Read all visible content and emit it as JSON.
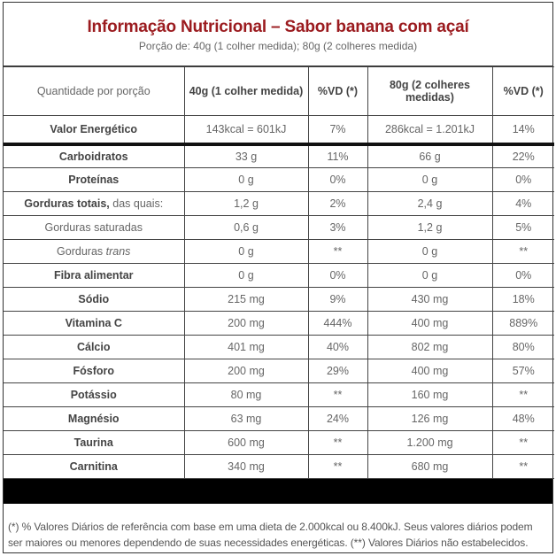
{
  "header": {
    "title": "Informação Nutricional – Sabor banana com açaí",
    "subtitle": "Porção de: 40g (1 colher medida); 80g (2 colheres medida)",
    "title_color": "#9b1b1f"
  },
  "table": {
    "columns": [
      "Quantidade por porção",
      "40g (1 colher medida)",
      "%VD (*)",
      "80g (2 colheres medidas)",
      "%VD (*)"
    ],
    "energy": {
      "label": "Valor Energético",
      "v40": "143kcal = 601kJ",
      "vd40": "7%",
      "v80": "286kcal = 1.201kJ",
      "vd80": "14%"
    },
    "rows": [
      {
        "label": "Carboidratos",
        "v40": "33 g",
        "vd40": "11%",
        "v80": "66 g",
        "vd80": "22%"
      },
      {
        "label": "Proteínas",
        "v40": "0 g",
        "vd40": "0%",
        "v80": "0 g",
        "vd80": "0%"
      },
      {
        "label": "Gorduras totais,",
        "label_suffix": " das quais:",
        "v40": "1,2 g",
        "vd40": "2%",
        "v80": "2,4 g",
        "vd80": "4%"
      },
      {
        "label": "Gorduras saturadas",
        "v40": "0,6 g",
        "vd40": "3%",
        "v80": "1,2 g",
        "vd80": "5%"
      },
      {
        "label": "Gorduras ",
        "label_italic": "trans",
        "v40": "0 g",
        "vd40": "**",
        "v80": "0 g",
        "vd80": "**"
      },
      {
        "label": "Fibra alimentar",
        "v40": "0 g",
        "vd40": "0%",
        "v80": "0 g",
        "vd80": "0%"
      },
      {
        "label": "Sódio",
        "v40": "215 mg",
        "vd40": "9%",
        "v80": "430 mg",
        "vd80": "18%"
      },
      {
        "label": "Vitamina C",
        "v40": "200 mg",
        "vd40": "444%",
        "v80": "400 mg",
        "vd80": "889%"
      },
      {
        "label": "Cálcio",
        "v40": "401 mg",
        "vd40": "40%",
        "v80": "802 mg",
        "vd80": "80%"
      },
      {
        "label": "Fósforo",
        "v40": "200 mg",
        "vd40": "29%",
        "v80": "400 mg",
        "vd80": "57%"
      },
      {
        "label": "Potássio",
        "v40": "80 mg",
        "vd40": "**",
        "v80": "160 mg",
        "vd80": "**"
      },
      {
        "label": "Magnésio",
        "v40": "63 mg",
        "vd40": "24%",
        "v80": "126 mg",
        "vd80": "48%"
      },
      {
        "label": "Taurina",
        "v40": "600 mg",
        "vd40": "**",
        "v80": "1.200 mg",
        "vd80": "**"
      },
      {
        "label": "Carnitina",
        "v40": "340 mg",
        "vd40": "**",
        "v80": "680 mg",
        "vd80": "**"
      }
    ]
  },
  "footnote": "(*) % Valores Diários de referência com base em uma dieta de 2.000kcal ou 8.400kJ. Seus valores diários podem ser maiores ou menores dependendo de suas necessidades energéticas. (**) Valores Diários não estabelecidos."
}
